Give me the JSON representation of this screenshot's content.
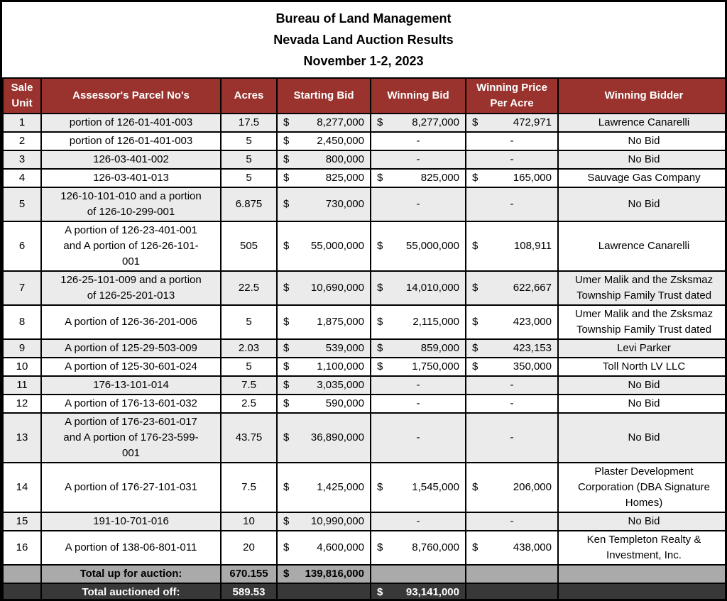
{
  "title": {
    "line1": "Bureau of Land Management",
    "line2": "Nevada Land Auction Results",
    "line3": "November 1-2, 2023"
  },
  "columns": [
    "Sale\nUnit",
    "Assessor's Parcel No's",
    "Acres",
    "Starting Bid",
    "Winning Bid",
    "Winning Price\nPer Acre",
    "Winning Bidder"
  ],
  "currency_symbol": "$",
  "empty_bid_marker": "-",
  "colors": {
    "header_bg": "#9a332e",
    "header_text": "#ffffff",
    "row_stripe": "#ebebeb",
    "row_plain": "#ffffff",
    "total_gray_bg": "#aaaaaa",
    "total_dark_bg": "#383838",
    "border": "#000000"
  },
  "rows": [
    {
      "unit": "1",
      "parcel": "portion of 126-01-401-003",
      "acres": "17.5",
      "starting_bid": "8,277,000",
      "winning_bid": "8,277,000",
      "price_per_acre": "472,971",
      "bidder": "Lawrence Canarelli"
    },
    {
      "unit": "2",
      "parcel": "portion of 126-01-401-003",
      "acres": "5",
      "starting_bid": "2,450,000",
      "winning_bid": "-",
      "price_per_acre": "-",
      "bidder": "No Bid"
    },
    {
      "unit": "3",
      "parcel": "126-03-401-002",
      "acres": "5",
      "starting_bid": "800,000",
      "winning_bid": "-",
      "price_per_acre": "-",
      "bidder": "No Bid"
    },
    {
      "unit": "4",
      "parcel": "126-03-401-013",
      "acres": "5",
      "starting_bid": "825,000",
      "winning_bid": "825,000",
      "price_per_acre": "165,000",
      "bidder": "Sauvage Gas Company"
    },
    {
      "unit": "5",
      "parcel": "126-10-101-010 and a portion\nof 126-10-299-001",
      "acres": "6.875",
      "starting_bid": "730,000",
      "winning_bid": "-",
      "price_per_acre": "-",
      "bidder": "No Bid"
    },
    {
      "unit": "6",
      "parcel": "A portion of 126-23-401-001\nand A portion of 126-26-101-\n001",
      "acres": "505",
      "starting_bid": "55,000,000",
      "winning_bid": "55,000,000",
      "price_per_acre": "108,911",
      "bidder": "Lawrence Canarelli"
    },
    {
      "unit": "7",
      "parcel": "126-25-101-009 and a portion\nof 126-25-201-013",
      "acres": "22.5",
      "starting_bid": "10,690,000",
      "winning_bid": "14,010,000",
      "price_per_acre": "622,667",
      "bidder": "Umer Malik and the Zsksmaz\nTownship Family Trust dated"
    },
    {
      "unit": "8",
      "parcel": "A portion of 126-36-201-006",
      "acres": "5",
      "starting_bid": "1,875,000",
      "winning_bid": "2,115,000",
      "price_per_acre": "423,000",
      "bidder": "Umer Malik and the Zsksmaz\nTownship Family Trust dated"
    },
    {
      "unit": "9",
      "parcel": "A portion of 125-29-503-009",
      "acres": "2.03",
      "starting_bid": "539,000",
      "winning_bid": "859,000",
      "price_per_acre": "423,153",
      "bidder": "Levi Parker"
    },
    {
      "unit": "10",
      "parcel": "A portion of 125-30-601-024",
      "acres": "5",
      "starting_bid": "1,100,000",
      "winning_bid": "1,750,000",
      "price_per_acre": "350,000",
      "bidder": "Toll North LV LLC"
    },
    {
      "unit": "11",
      "parcel": "176-13-101-014",
      "acres": "7.5",
      "starting_bid": "3,035,000",
      "winning_bid": "-",
      "price_per_acre": "-",
      "bidder": "No Bid"
    },
    {
      "unit": "12",
      "parcel": "A portion of 176-13-601-032",
      "acres": "2.5",
      "starting_bid": "590,000",
      "winning_bid": "-",
      "price_per_acre": "-",
      "bidder": "No Bid"
    },
    {
      "unit": "13",
      "parcel": "A portion of 176-23-601-017\nand A portion of 176-23-599-\n001",
      "acres": "43.75",
      "starting_bid": "36,890,000",
      "winning_bid": "-",
      "price_per_acre": "-",
      "bidder": "No Bid"
    },
    {
      "unit": "14",
      "parcel": "A portion of 176-27-101-031",
      "acres": "7.5",
      "starting_bid": "1,425,000",
      "winning_bid": "1,545,000",
      "price_per_acre": "206,000",
      "bidder": "Plaster Development\nCorporation (DBA Signature\nHomes)"
    },
    {
      "unit": "15",
      "parcel": "191-10-701-016",
      "acres": "10",
      "starting_bid": "10,990,000",
      "winning_bid": "-",
      "price_per_acre": "-",
      "bidder": "No Bid"
    },
    {
      "unit": "16",
      "parcel": "A portion of 138-06-801-011",
      "acres": "20",
      "starting_bid": "4,600,000",
      "winning_bid": "8,760,000",
      "price_per_acre": "438,000",
      "bidder": "Ken Templeton Realty &\nInvestment, Inc."
    }
  ],
  "totals": [
    {
      "label": "Total up for auction:",
      "acres": "670.155",
      "starting_bid": "139,816,000",
      "winning_bid": "",
      "price_per_acre": "",
      "bidder": "",
      "variant": "total-gray"
    },
    {
      "label": "Total auctioned off:",
      "acres": "589.53",
      "starting_bid": "",
      "winning_bid": "93,141,000",
      "price_per_acre": "",
      "bidder": "",
      "variant": "total-dark"
    }
  ]
}
